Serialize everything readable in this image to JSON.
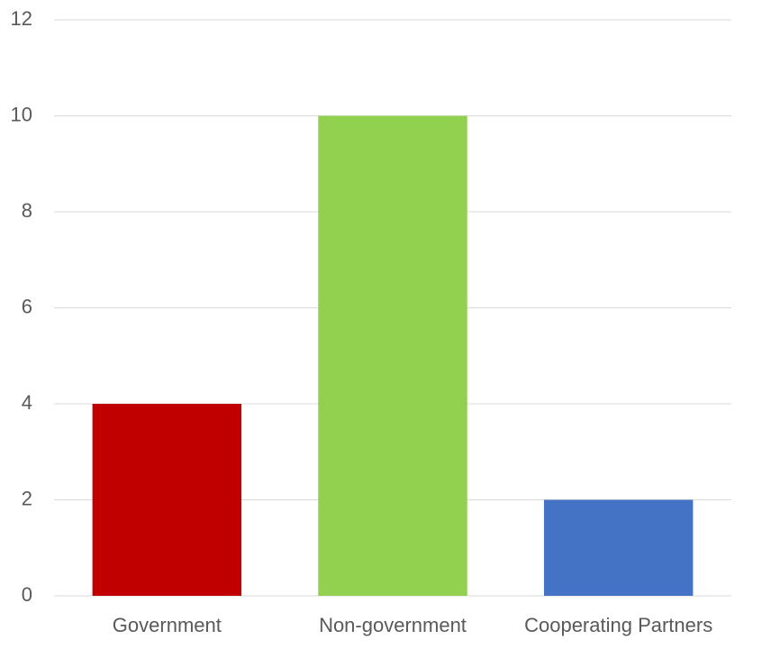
{
  "chart_data": {
    "type": "bar",
    "categories": [
      "Government",
      "Non-government",
      "Cooperating Partners"
    ],
    "values": [
      4,
      10,
      2
    ],
    "colors": [
      "#c00000",
      "#92d050",
      "#4472c4"
    ],
    "ylim": [
      0,
      12
    ],
    "yticks": [
      0,
      2,
      4,
      6,
      8,
      10,
      12
    ],
    "grid": true
  }
}
